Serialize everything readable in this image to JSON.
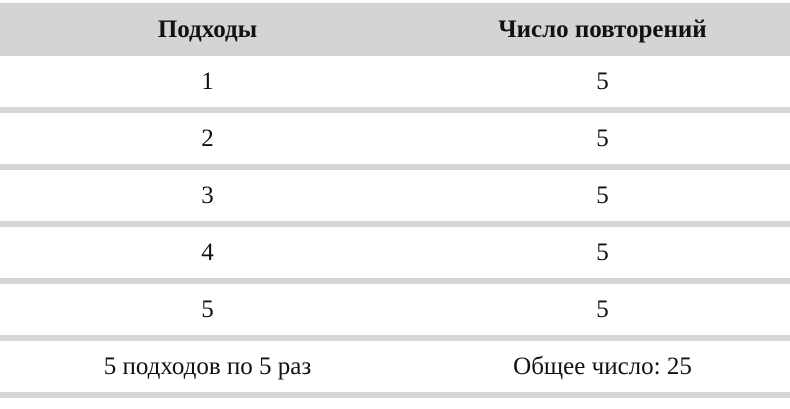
{
  "table": {
    "headers": [
      "Подходы",
      "Число повторений"
    ],
    "rows": [
      [
        "1",
        "5"
      ],
      [
        "2",
        "5"
      ],
      [
        "3",
        "5"
      ],
      [
        "4",
        "5"
      ],
      [
        "5",
        "5"
      ],
      [
        "5 подходов по 5 раз",
        "Общее число: 25"
      ]
    ],
    "colors": {
      "header_bg": "#d4d4d4",
      "separator": "#d6d6d6"
    }
  }
}
